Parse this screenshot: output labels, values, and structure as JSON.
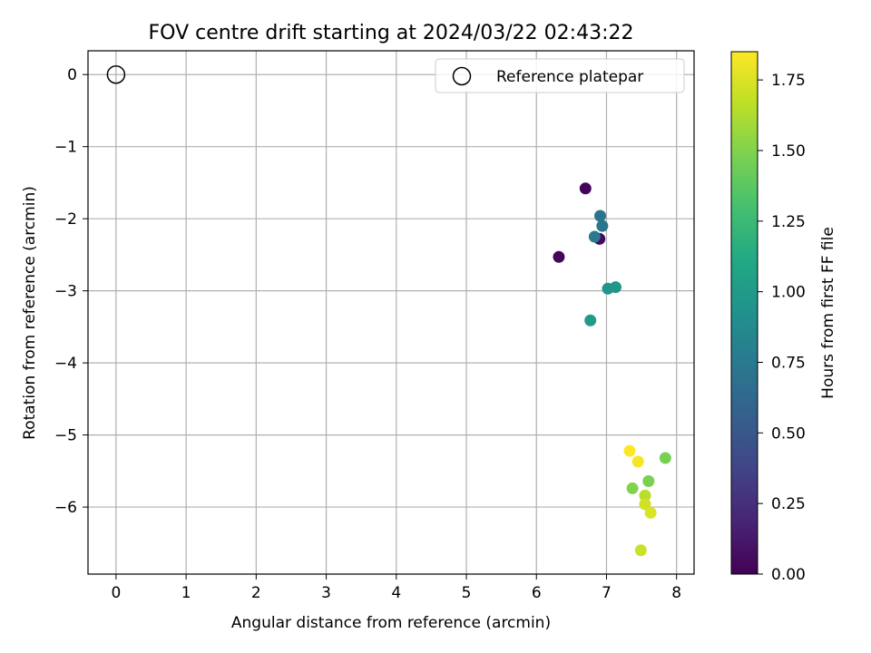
{
  "chart_data": {
    "type": "scatter",
    "title": "FOV centre drift starting at 2024/03/22 02:43:22",
    "xlabel": "Angular distance from reference (arcmin)",
    "ylabel": "Rotation from reference (arcmin)",
    "xlim": [
      -0.4,
      8.25
    ],
    "ylim": [
      -6.93,
      0.33
    ],
    "xticks": [
      0,
      1,
      2,
      3,
      4,
      5,
      6,
      7,
      8
    ],
    "yticks": [
      0,
      -1,
      -2,
      -3,
      -4,
      -5,
      -6
    ],
    "xtick_labels": [
      "0",
      "1",
      "2",
      "3",
      "4",
      "5",
      "6",
      "7",
      "8"
    ],
    "ytick_labels": [
      "0",
      "−1",
      "−2",
      "−3",
      "−4",
      "−5",
      "−6"
    ],
    "grid": true,
    "legend": {
      "placement": "top-right",
      "label": "Reference platepar"
    },
    "reference_point": {
      "x": 0,
      "y": 0
    },
    "colorbar": {
      "label": "Hours from first FF file",
      "colormap": "viridis",
      "range": [
        0,
        1.85
      ],
      "ticks": [
        0.0,
        0.25,
        0.5,
        0.75,
        1.0,
        1.25,
        1.5,
        1.75
      ],
      "tick_labels": [
        "0.00",
        "0.25",
        "0.50",
        "0.75",
        "1.00",
        "1.25",
        "1.50",
        "1.75"
      ]
    },
    "points": [
      {
        "x": 6.7,
        "y": -1.58,
        "c": 0.02
      },
      {
        "x": 6.32,
        "y": -2.53,
        "c": 0.03
      },
      {
        "x": 6.9,
        "y": -2.28,
        "c": 0.05
      },
      {
        "x": 6.91,
        "y": -1.96,
        "c": 0.7
      },
      {
        "x": 6.94,
        "y": -2.1,
        "c": 0.72
      },
      {
        "x": 6.83,
        "y": -2.25,
        "c": 0.75
      },
      {
        "x": 7.02,
        "y": -2.97,
        "c": 0.95
      },
      {
        "x": 7.13,
        "y": -2.95,
        "c": 0.97
      },
      {
        "x": 6.77,
        "y": -3.41,
        "c": 1.0
      },
      {
        "x": 7.84,
        "y": -5.32,
        "c": 1.47
      },
      {
        "x": 7.6,
        "y": -5.64,
        "c": 1.48
      },
      {
        "x": 7.37,
        "y": -5.74,
        "c": 1.5
      },
      {
        "x": 7.55,
        "y": -5.84,
        "c": 1.65
      },
      {
        "x": 7.55,
        "y": -5.96,
        "c": 1.72
      },
      {
        "x": 7.63,
        "y": -6.08,
        "c": 1.75
      },
      {
        "x": 7.49,
        "y": -6.6,
        "c": 1.7
      },
      {
        "x": 7.45,
        "y": -5.37,
        "c": 1.83
      },
      {
        "x": 7.33,
        "y": -5.22,
        "c": 1.85
      }
    ]
  }
}
